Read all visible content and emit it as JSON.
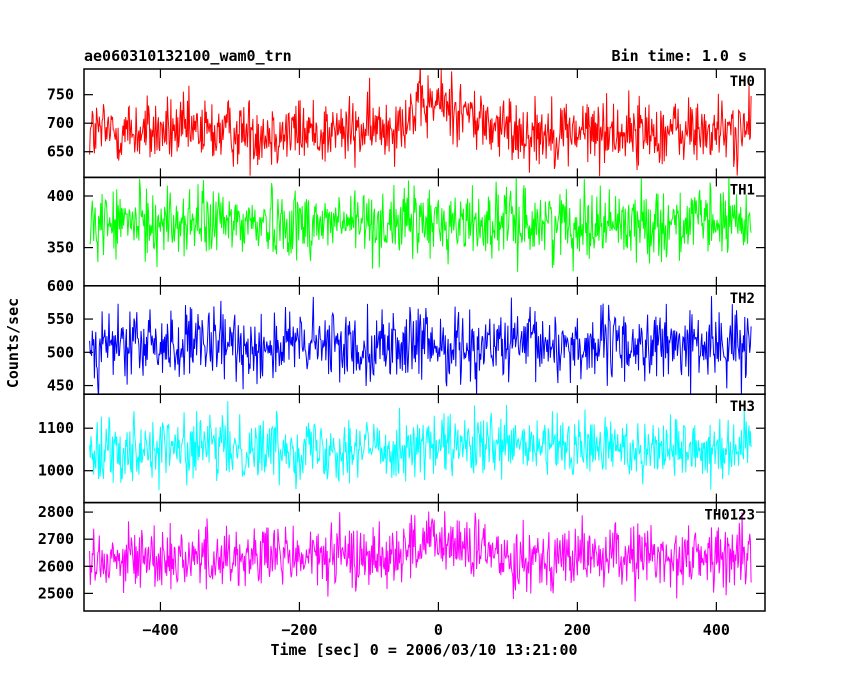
{
  "plot": {
    "title_left": "ae060310132100_wam0_trn",
    "title_right": "Bin time: 1.0 s",
    "xlabel": "Time [sec] 0 = 2006/03/10 13:21:00",
    "ylabel": "Counts/sec"
  },
  "chart_data": {
    "type": "line",
    "xlim": [
      -510,
      470
    ],
    "x_ticks": [
      -400,
      -200,
      0,
      200,
      400
    ],
    "x_range": [
      -502,
      450
    ],
    "grid": false,
    "legend": "none",
    "panels": [
      {
        "name": "TH0",
        "color": "#ff0000",
        "ylim": [
          605,
          795
        ],
        "y_ticks": [
          650,
          700,
          750
        ],
        "mean": 685,
        "noise_sd": 30,
        "bump": 50,
        "values_summary": "approx. 640-760 counts/sec, slight rise near t=0"
      },
      {
        "name": "TH1",
        "color": "#00ff00",
        "ylim": [
          313,
          418
        ],
        "y_ticks": [
          350,
          400
        ],
        "mean": 374,
        "noise_sd": 17,
        "bump": 0,
        "values_summary": "approx. 335-415 counts/sec"
      },
      {
        "name": "TH2",
        "color": "#0000ff",
        "ylim": [
          437,
          600
        ],
        "y_ticks": [
          450,
          500,
          550,
          600
        ],
        "mean": 510,
        "noise_sd": 27,
        "bump": 0,
        "values_summary": "approx. 450-590 counts/sec"
      },
      {
        "name": "TH3",
        "color": "#00ffff",
        "ylim": [
          925,
          1180
        ],
        "y_ticks": [
          1000,
          1100
        ],
        "mean": 1055,
        "noise_sd": 38,
        "bump": 0,
        "values_summary": "approx. 970-1160 counts/sec"
      },
      {
        "name": "TH0123",
        "color": "#ff00ff",
        "ylim": [
          2435,
          2835
        ],
        "y_ticks": [
          2500,
          2600,
          2700,
          2800
        ],
        "mean": 2635,
        "noise_sd": 60,
        "bump": 50,
        "values_summary": "approx. 2480-2800 counts/sec, slight rise after t=0"
      }
    ]
  }
}
